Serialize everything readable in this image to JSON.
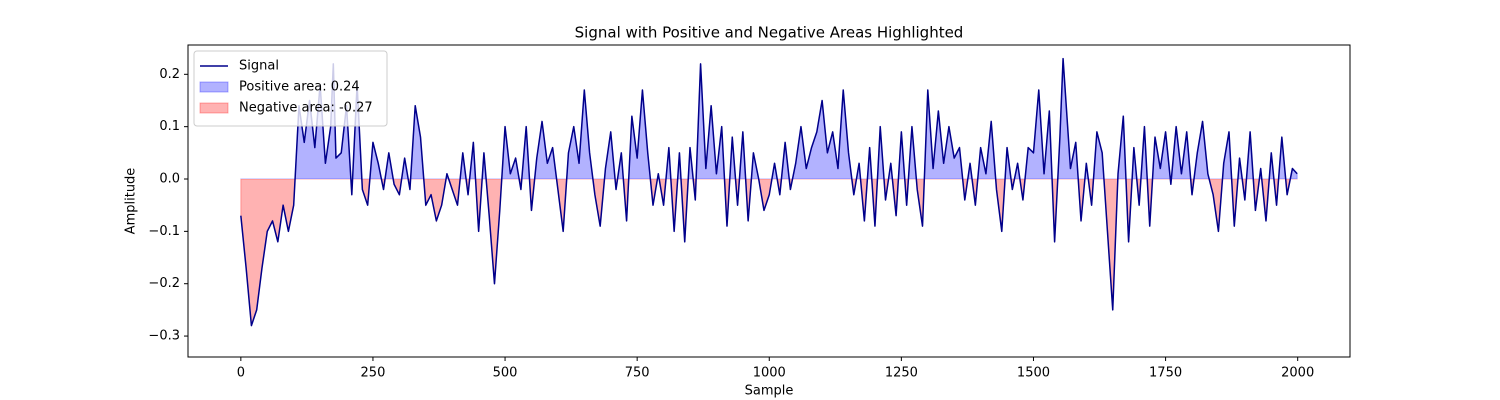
{
  "chart_data": {
    "type": "line",
    "title": "Signal with Positive and Negative Areas Highlighted",
    "xlabel": "Sample",
    "ylabel": "Amplitude",
    "x": [
      0,
      10,
      20,
      30,
      40,
      50,
      60,
      70,
      80,
      90,
      100,
      110,
      120,
      130,
      140,
      150,
      160,
      170,
      175,
      180,
      190,
      200,
      210,
      220,
      230,
      240,
      250,
      260,
      270,
      280,
      290,
      300,
      310,
      320,
      330,
      340,
      350,
      360,
      370,
      380,
      390,
      400,
      410,
      420,
      430,
      440,
      450,
      460,
      470,
      480,
      490,
      500,
      510,
      520,
      530,
      540,
      550,
      560,
      570,
      580,
      590,
      600,
      610,
      620,
      630,
      640,
      650,
      660,
      670,
      680,
      690,
      700,
      710,
      720,
      730,
      740,
      750,
      760,
      770,
      780,
      790,
      800,
      810,
      820,
      830,
      840,
      850,
      860,
      870,
      880,
      890,
      900,
      910,
      920,
      930,
      940,
      950,
      960,
      970,
      980,
      990,
      1000,
      1010,
      1020,
      1030,
      1040,
      1050,
      1060,
      1070,
      1080,
      1090,
      1100,
      1110,
      1120,
      1130,
      1140,
      1150,
      1160,
      1170,
      1180,
      1190,
      1200,
      1210,
      1220,
      1230,
      1240,
      1250,
      1260,
      1270,
      1280,
      1290,
      1300,
      1310,
      1320,
      1330,
      1340,
      1350,
      1360,
      1370,
      1380,
      1390,
      1400,
      1410,
      1420,
      1430,
      1440,
      1450,
      1460,
      1470,
      1480,
      1490,
      1500,
      1510,
      1520,
      1530,
      1540,
      1550,
      1556,
      1570,
      1580,
      1590,
      1600,
      1610,
      1620,
      1630,
      1640,
      1650,
      1660,
      1670,
      1680,
      1690,
      1700,
      1710,
      1720,
      1730,
      1740,
      1750,
      1760,
      1770,
      1780,
      1790,
      1800,
      1810,
      1820,
      1830,
      1840,
      1850,
      1860,
      1870,
      1880,
      1890,
      1900,
      1910,
      1920,
      1930,
      1940,
      1950,
      1960,
      1970,
      1980,
      1990,
      1999
    ],
    "series": [
      {
        "name": "Signal",
        "color": "#00008b",
        "values": [
          -0.07,
          -0.17,
          -0.28,
          -0.25,
          -0.17,
          -0.1,
          -0.08,
          -0.12,
          -0.05,
          -0.1,
          -0.05,
          0.14,
          0.07,
          0.15,
          0.06,
          0.18,
          0.03,
          0.1,
          0.22,
          0.04,
          0.05,
          0.14,
          -0.03,
          0.18,
          -0.02,
          -0.05,
          0.07,
          0.03,
          -0.02,
          0.05,
          -0.01,
          -0.03,
          0.04,
          -0.02,
          0.14,
          0.08,
          -0.05,
          -0.03,
          -0.08,
          -0.05,
          0.01,
          -0.02,
          -0.05,
          0.05,
          -0.03,
          0.07,
          -0.1,
          0.05,
          -0.07,
          -0.2,
          -0.06,
          0.1,
          0.01,
          0.04,
          -0.02,
          0.1,
          -0.06,
          0.04,
          0.11,
          0.03,
          0.06,
          -0.02,
          -0.1,
          0.05,
          0.1,
          0.03,
          0.17,
          0.05,
          -0.03,
          -0.09,
          0.02,
          0.09,
          -0.02,
          0.05,
          -0.08,
          0.12,
          0.04,
          0.17,
          0.05,
          -0.05,
          0.01,
          -0.05,
          0.06,
          -0.1,
          0.05,
          -0.12,
          0.06,
          -0.04,
          0.22,
          0.02,
          0.14,
          0.01,
          0.1,
          -0.09,
          0.08,
          -0.05,
          0.09,
          -0.08,
          0.05,
          0.0,
          -0.06,
          -0.03,
          0.03,
          -0.03,
          0.07,
          -0.02,
          0.03,
          0.1,
          0.02,
          0.06,
          0.09,
          0.15,
          0.05,
          0.09,
          0.02,
          0.17,
          0.05,
          -0.03,
          0.03,
          -0.08,
          0.06,
          -0.09,
          0.1,
          -0.04,
          0.03,
          -0.07,
          0.09,
          -0.05,
          0.1,
          -0.02,
          -0.09,
          0.17,
          0.02,
          0.13,
          0.03,
          0.1,
          0.04,
          0.06,
          -0.04,
          0.03,
          -0.05,
          0.06,
          0.01,
          0.11,
          -0.02,
          -0.1,
          0.06,
          -0.02,
          0.03,
          -0.04,
          0.06,
          0.05,
          0.17,
          0.01,
          0.13,
          -0.12,
          0.08,
          0.23,
          0.02,
          0.07,
          -0.08,
          0.03,
          -0.05,
          0.09,
          0.05,
          -0.1,
          -0.25,
          0.01,
          0.12,
          -0.12,
          0.06,
          -0.05,
          0.1,
          -0.09,
          0.08,
          0.02,
          0.09,
          -0.01,
          0.1,
          0.01,
          0.09,
          -0.03,
          0.05,
          0.11,
          0.01,
          -0.03,
          -0.1,
          0.03,
          0.09,
          -0.09,
          0.04,
          -0.04,
          0.09,
          -0.06,
          0.02,
          -0.08,
          0.05,
          -0.05,
          0.08,
          -0.03,
          0.02,
          0.01
        ]
      }
    ],
    "fill_areas": [
      {
        "name": "Positive area: 0.24",
        "color": "#0000ff",
        "alpha": 0.3,
        "sign": "positive"
      },
      {
        "name": "Negative area: -0.27",
        "color": "#ff0000",
        "alpha": 0.3,
        "sign": "negative"
      }
    ],
    "xlim": [
      -100,
      2099
    ],
    "ylim": [
      -0.34,
      0.256
    ],
    "xticks": [
      0,
      250,
      500,
      750,
      1000,
      1250,
      1500,
      1750,
      2000
    ],
    "yticks": [
      {
        "value": -0.3,
        "label": "−0.3"
      },
      {
        "value": -0.2,
        "label": "−0.2"
      },
      {
        "value": -0.1,
        "label": "−0.1"
      },
      {
        "value": 0,
        "label": "0.0"
      },
      0.1,
      0.2
    ],
    "grid": false,
    "legend_loc": "upper left"
  }
}
